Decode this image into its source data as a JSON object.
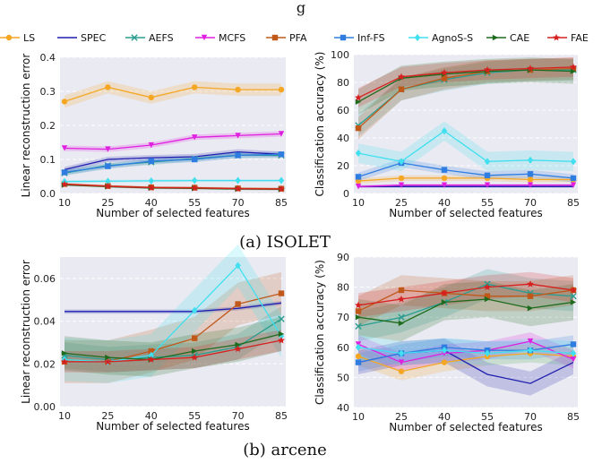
{
  "top_text": "g",
  "legend": [
    {
      "name": "LS",
      "color": "#f5a623",
      "marker": "circle"
    },
    {
      "name": "SPEC",
      "color": "#1f1faf",
      "marker": "none"
    },
    {
      "name": "AEFS",
      "color": "#2a9d8f",
      "marker": "x"
    },
    {
      "name": "MCFS",
      "color": "#e020e0",
      "marker": "tri_down"
    },
    {
      "name": "PFA",
      "color": "#c0581a",
      "marker": "square"
    },
    {
      "name": "Inf-FS",
      "color": "#2f7de1",
      "marker": "square"
    },
    {
      "name": "AgnoS-S",
      "color": "#40e0f0",
      "marker": "diamond"
    },
    {
      "name": "CAE",
      "color": "#1e6b1e",
      "marker": "tri_right"
    },
    {
      "name": "FAE",
      "color": "#d62020",
      "marker": "star"
    }
  ],
  "captions": [
    "(a) ISOLET",
    "(b) arcene"
  ],
  "chart_data": [
    {
      "type": "line",
      "panel": "isolet-reconstruction",
      "xlabel": "Number of selected features",
      "ylabel": "Linear reconstruction error",
      "x": [
        10,
        25,
        40,
        55,
        70,
        85
      ],
      "xticks": [
        "10",
        "25",
        "40",
        "55",
        "70",
        "85"
      ],
      "yticks": [
        "0.0",
        "0.1",
        "0.2",
        "0.3",
        "0.4"
      ],
      "ylim": [
        0,
        0.4
      ],
      "grid": true,
      "series": [
        {
          "name": "LS",
          "values": [
            0.27,
            0.312,
            0.282,
            0.312,
            0.305,
            0.305
          ],
          "band": 0.018
        },
        {
          "name": "SPEC",
          "values": [
            0.07,
            0.1,
            0.105,
            0.108,
            0.122,
            0.115
          ],
          "band": 0.008
        },
        {
          "name": "AEFS",
          "values": [
            0.06,
            0.082,
            0.092,
            0.102,
            0.112,
            0.112
          ],
          "band": 0.008
        },
        {
          "name": "MCFS",
          "values": [
            0.133,
            0.13,
            0.142,
            0.165,
            0.17,
            0.175
          ],
          "band": 0.008
        },
        {
          "name": "PFA",
          "values": [
            0.028,
            0.022,
            0.018,
            0.017,
            0.015,
            0.014
          ],
          "band": 0.003
        },
        {
          "name": "Inf-FS",
          "values": [
            0.062,
            0.08,
            0.095,
            0.1,
            0.112,
            0.115
          ],
          "band": 0.008
        },
        {
          "name": "AgnoS-S",
          "values": [
            0.035,
            0.036,
            0.037,
            0.038,
            0.038,
            0.038
          ],
          "band": 0.004
        },
        {
          "name": "CAE",
          "values": [
            0.025,
            0.02,
            0.016,
            0.015,
            0.013,
            0.012
          ],
          "band": 0.003
        },
        {
          "name": "FAE",
          "values": [
            0.027,
            0.021,
            0.017,
            0.016,
            0.014,
            0.013
          ],
          "band": 0.003
        }
      ]
    },
    {
      "type": "line",
      "panel": "isolet-accuracy",
      "xlabel": "Number of selected features",
      "ylabel": "Classification accuracy (%)",
      "x": [
        10,
        25,
        40,
        55,
        70,
        85
      ],
      "xticks": [
        "10",
        "25",
        "40",
        "55",
        "70",
        "85"
      ],
      "yticks": [
        "0",
        "20",
        "40",
        "60",
        "80",
        "100"
      ],
      "ylim": [
        0,
        100
      ],
      "grid": true,
      "series": [
        {
          "name": "LS",
          "values": [
            9,
            11,
            11,
            11,
            10,
            10
          ],
          "band": 2
        },
        {
          "name": "SPEC",
          "values": [
            5,
            5,
            5,
            5,
            5,
            5
          ],
          "band": 1
        },
        {
          "name": "AEFS",
          "values": [
            49,
            75,
            82,
            87,
            89,
            89
          ],
          "band": 8
        },
        {
          "name": "MCFS",
          "values": [
            5,
            6,
            6,
            6,
            6,
            6
          ],
          "band": 1
        },
        {
          "name": "PFA",
          "values": [
            47,
            75,
            83,
            88,
            89,
            90
          ],
          "band": 8
        },
        {
          "name": "Inf-FS",
          "values": [
            12,
            22,
            17,
            13,
            14,
            11
          ],
          "band": 3
        },
        {
          "name": "AgnoS-S",
          "values": [
            29,
            23,
            45,
            23,
            24,
            23
          ],
          "band": 7
        },
        {
          "name": "CAE",
          "values": [
            66,
            83,
            86,
            88,
            89,
            88
          ],
          "band": 9
        },
        {
          "name": "FAE",
          "values": [
            69,
            84,
            87,
            89,
            90,
            91
          ],
          "band": 7
        }
      ]
    },
    {
      "type": "line",
      "panel": "arcene-reconstruction",
      "xlabel": "Number of selected features",
      "ylabel": "Linear reconstruction error",
      "x": [
        10,
        25,
        40,
        55,
        70,
        85
      ],
      "xticks": [
        "10",
        "25",
        "40",
        "55",
        "70",
        "85"
      ],
      "yticks": [
        "0.00",
        "0.02",
        "0.04",
        "0.06"
      ],
      "ylim": [
        0,
        0.07
      ],
      "grid": true,
      "series": [
        {
          "name": "SPEC",
          "values": [
            0.0445,
            0.0445,
            0.0445,
            0.0445,
            0.046,
            0.0485
          ],
          "band": 0.001
        },
        {
          "name": "AEFS",
          "values": [
            0.024,
            0.022,
            0.023,
            0.024,
            0.028,
            0.041
          ],
          "band": 0.006
        },
        {
          "name": "PFA",
          "values": [
            0.021,
            0.021,
            0.026,
            0.032,
            0.048,
            0.053
          ],
          "band": 0.01
        },
        {
          "name": "AgnoS-S",
          "values": [
            0.022,
            0.021,
            0.024,
            0.045,
            0.066,
            0.033
          ],
          "band": 0.01
        },
        {
          "name": "CAE",
          "values": [
            0.025,
            0.023,
            0.022,
            0.026,
            0.029,
            0.034
          ],
          "band": 0.008
        },
        {
          "name": "FAE",
          "values": [
            0.021,
            0.021,
            0.022,
            0.023,
            0.027,
            0.031
          ],
          "band": 0.005
        }
      ]
    },
    {
      "type": "line",
      "panel": "arcene-accuracy",
      "xlabel": "Number of selected features",
      "ylabel": "Classification accuracy (%)",
      "x": [
        10,
        25,
        40,
        55,
        70,
        85
      ],
      "xticks": [
        "10",
        "25",
        "40",
        "55",
        "70",
        "85"
      ],
      "yticks": [
        "40",
        "50",
        "60",
        "70",
        "80",
        "90"
      ],
      "ylim": [
        40,
        90
      ],
      "grid": true,
      "series": [
        {
          "name": "LS",
          "values": [
            57,
            52,
            55,
            57,
            58,
            57
          ],
          "band": 3
        },
        {
          "name": "SPEC",
          "values": [
            55,
            58,
            59,
            51,
            48,
            55
          ],
          "band": 4
        },
        {
          "name": "AEFS",
          "values": [
            67,
            70,
            75,
            81,
            78,
            77
          ],
          "band": 5
        },
        {
          "name": "MCFS",
          "values": [
            61,
            55,
            58,
            59,
            62,
            56
          ],
          "band": 3
        },
        {
          "name": "PFA",
          "values": [
            72,
            79,
            78,
            77,
            77,
            79
          ],
          "band": 5
        },
        {
          "name": "Inf-FS",
          "values": [
            55,
            58,
            60,
            59,
            59,
            61
          ],
          "band": 3
        },
        {
          "name": "AgnoS-S",
          "values": [
            60,
            58,
            59,
            58,
            59,
            58
          ],
          "band": 4
        },
        {
          "name": "CAE",
          "values": [
            70,
            68,
            75,
            76,
            73,
            75
          ],
          "band": 6
        },
        {
          "name": "FAE",
          "values": [
            74,
            76,
            78,
            80,
            81,
            79
          ],
          "band": 4
        }
      ]
    }
  ]
}
